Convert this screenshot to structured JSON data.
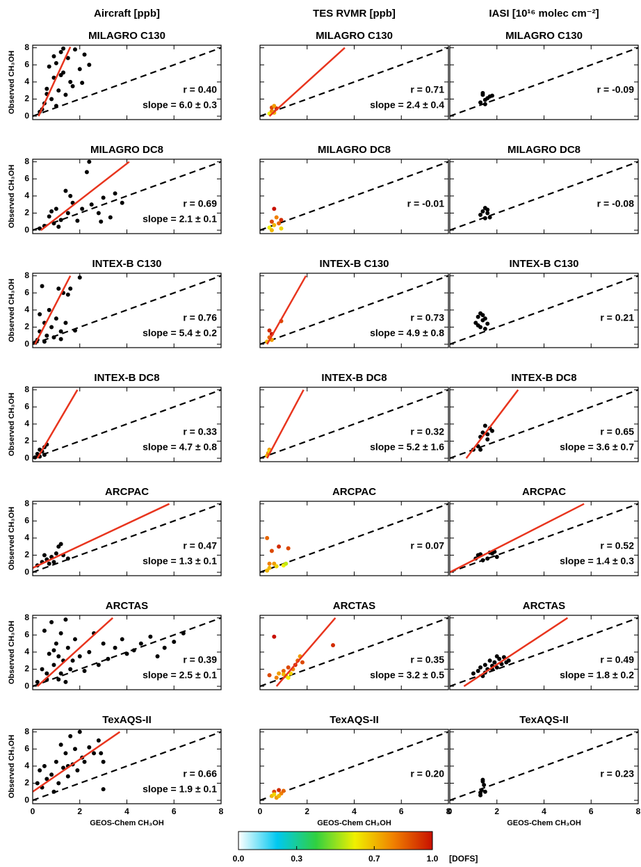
{
  "column_headers": [
    "Aircraft [ppb]",
    "TES RVMR [ppb]",
    "IASI [10¹⁶ molec cm⁻²]"
  ],
  "y_label": "Observed CH₃OH",
  "x_label": "GEOS-Chem CH₃OH",
  "fit_color": "#e8351e",
  "point_color": "#000000",
  "colorbar": {
    "colormap": [
      "#ffffff",
      "#00c8f0",
      "#30d040",
      "#f0f000",
      "#f08000",
      "#c81000"
    ],
    "lim": [
      0,
      1
    ],
    "ticks": [
      {
        "value": 0,
        "label": "0.0"
      },
      0.3,
      0.7,
      {
        "value": 1,
        "label": "1.0"
      }
    ],
    "label": "[DOFS]"
  },
  "chart_data": [
    {
      "type": "scatter",
      "title": "MILAGRO C130",
      "xlim": [
        0,
        8
      ],
      "ylim": [
        -0.4,
        8.3
      ],
      "xticks": [
        0,
        2,
        4,
        6,
        8
      ],
      "yticks": [
        0,
        2,
        4,
        6,
        8
      ],
      "x": [
        0.3,
        0.5,
        0.6,
        0.8,
        0.9,
        1.0,
        1.1,
        1.2,
        1.3,
        1.4,
        1.5,
        1.6,
        1.8,
        2.0,
        2.2,
        2.4,
        0.4,
        0.7,
        1.0,
        1.3,
        1.7,
        2.1,
        0.6,
        0.9,
        1.2
      ],
      "y": [
        0.5,
        1.5,
        3.2,
        2.0,
        4.5,
        6.2,
        3.0,
        7.5,
        5.1,
        2.5,
        6.8,
        4.0,
        7.8,
        5.5,
        7.2,
        6.0,
        0.8,
        5.8,
        1.2,
        7.9,
        3.5,
        3.9,
        2.6,
        7.0,
        4.8
      ],
      "fit_x": [
        0.25,
        1.6
      ],
      "fit_y": [
        0,
        8.1
      ],
      "r": "r = 0.40",
      "slope": "slope = 6.0 ± 0.3"
    },
    {
      "type": "scatter",
      "title": "MILAGRO C130",
      "xlim": [
        0,
        8
      ],
      "ylim": [
        -0.4,
        8.3
      ],
      "xticks": [
        0,
        2,
        4,
        6,
        8
      ],
      "yticks": [
        0,
        2,
        4,
        6,
        8
      ],
      "x": [
        0.4,
        0.5,
        0.5,
        0.6,
        0.7,
        0.6
      ],
      "y": [
        0.3,
        0.6,
        1.0,
        0.4,
        0.9,
        1.2
      ],
      "dofs": [
        0.6,
        0.8,
        0.9,
        0.7,
        0.95,
        0.75
      ],
      "fit_x": [
        0.4,
        3.6
      ],
      "fit_y": [
        0,
        8
      ],
      "r": "r = 0.71",
      "slope": "slope = 2.4 ± 0.4"
    },
    {
      "type": "scatter",
      "title": "MILAGRO C130",
      "xlim": [
        0,
        8
      ],
      "ylim": [
        -0.4,
        8.3
      ],
      "xticks": [
        0,
        2,
        4,
        6,
        8
      ],
      "yticks": [
        0,
        2,
        4,
        6,
        8
      ],
      "x": [
        1.3,
        1.4,
        1.4,
        1.5,
        1.6,
        1.7,
        1.8,
        1.5
      ],
      "y": [
        1.6,
        2.5,
        2.7,
        1.9,
        2.1,
        2.3,
        2.4,
        1.4
      ],
      "r": "r = -0.09"
    },
    {
      "type": "scatter",
      "title": "MILAGRO DC8",
      "xlim": [
        0,
        8
      ],
      "ylim": [
        -0.4,
        8.3
      ],
      "xticks": [
        0,
        2,
        4,
        6,
        8
      ],
      "yticks": [
        0,
        2,
        4,
        6,
        8
      ],
      "x": [
        0.3,
        0.5,
        0.7,
        0.9,
        1.0,
        1.2,
        1.4,
        1.5,
        1.7,
        1.9,
        2.1,
        2.3,
        2.5,
        2.8,
        3.0,
        3.3,
        3.5,
        3.8,
        1.1,
        1.6,
        2.4,
        0.8,
        2.9
      ],
      "y": [
        0.2,
        0.5,
        1.6,
        0.8,
        2.5,
        1.2,
        4.6,
        2.0,
        3.2,
        1.1,
        2.5,
        6.8,
        3.0,
        2.0,
        3.8,
        1.5,
        4.3,
        3.2,
        0.4,
        4.0,
        8.0,
        2.2,
        1.0
      ],
      "fit_x": [
        0.35,
        4.1
      ],
      "fit_y": [
        0,
        8
      ],
      "r": "r = 0.69",
      "slope": "slope = 2.1 ± 0.1"
    },
    {
      "type": "scatter",
      "title": "MILAGRO DC8",
      "xlim": [
        0,
        8
      ],
      "ylim": [
        -0.4,
        8.3
      ],
      "xticks": [
        0,
        2,
        4,
        6,
        8
      ],
      "yticks": [
        0,
        2,
        4,
        6,
        8
      ],
      "x": [
        0.4,
        0.5,
        0.6,
        0.6,
        0.7,
        0.8,
        0.9,
        0.9,
        0.5
      ],
      "y": [
        0.3,
        1.0,
        2.5,
        0.6,
        1.5,
        0.8,
        0.2,
        1.2,
        0.0
      ],
      "dofs": [
        0.6,
        0.9,
        1.0,
        0.7,
        0.8,
        0.85,
        0.65,
        0.95,
        0.7
      ],
      "r": "r = -0.01"
    },
    {
      "type": "scatter",
      "title": "MILAGRO DC8",
      "xlim": [
        0,
        8
      ],
      "ylim": [
        -0.4,
        8.3
      ],
      "xticks": [
        0,
        2,
        4,
        6,
        8
      ],
      "yticks": [
        0,
        2,
        4,
        6,
        8
      ],
      "x": [
        1.3,
        1.4,
        1.5,
        1.5,
        1.6,
        1.7,
        1.6
      ],
      "y": [
        1.8,
        2.2,
        1.4,
        2.6,
        2.0,
        1.5,
        2.4
      ],
      "r": "r = -0.08"
    },
    {
      "type": "scatter",
      "title": "INTEX-B C130",
      "xlim": [
        0,
        8
      ],
      "ylim": [
        -0.4,
        8.3
      ],
      "xticks": [
        0,
        2,
        4,
        6,
        8
      ],
      "yticks": [
        0,
        2,
        4,
        6,
        8
      ],
      "x": [
        0.1,
        0.2,
        0.3,
        0.4,
        0.5,
        0.6,
        0.7,
        0.8,
        0.9,
        1.0,
        1.1,
        1.2,
        1.3,
        1.4,
        1.5,
        1.6,
        1.8,
        2.0,
        0.3,
        0.5,
        1.2
      ],
      "y": [
        0.2,
        0.5,
        1.5,
        6.8,
        2.5,
        1.0,
        4.0,
        2.0,
        0.8,
        3.0,
        6.5,
        1.5,
        6.0,
        2.5,
        5.8,
        6.5,
        1.6,
        7.8,
        3.5,
        0.3,
        0.6
      ],
      "fit_x": [
        0.1,
        1.6
      ],
      "fit_y": [
        0,
        8
      ],
      "r": "r = 0.76",
      "slope": "slope = 5.4 ± 0.2"
    },
    {
      "type": "scatter",
      "title": "INTEX-B C130",
      "xlim": [
        0,
        8
      ],
      "ylim": [
        -0.4,
        8.3
      ],
      "xticks": [
        0,
        2,
        4,
        6,
        8
      ],
      "yticks": [
        0,
        2,
        4,
        6,
        8
      ],
      "x": [
        0.3,
        0.4,
        0.4,
        0.5,
        0.5,
        0.9
      ],
      "y": [
        0.3,
        0.8,
        1.6,
        0.5,
        1.2,
        2.7
      ],
      "dofs": [
        0.7,
        0.85,
        0.95,
        0.75,
        1.0,
        0.9
      ],
      "fit_x": [
        0.3,
        1.95
      ],
      "fit_y": [
        0,
        8
      ],
      "r": "r = 0.73",
      "slope": "slope = 4.9 ± 0.8"
    },
    {
      "type": "scatter",
      "title": "INTEX-B C130",
      "xlim": [
        0,
        8
      ],
      "ylim": [
        -0.4,
        8.3
      ],
      "xticks": [
        0,
        2,
        4,
        6,
        8
      ],
      "yticks": [
        0,
        2,
        4,
        6,
        8
      ],
      "x": [
        1.1,
        1.2,
        1.3,
        1.3,
        1.4,
        1.5,
        1.5,
        1.6,
        1.2,
        1.4
      ],
      "y": [
        2.5,
        3.2,
        2.0,
        3.6,
        2.8,
        3.0,
        1.8,
        2.4,
        2.2,
        3.4
      ],
      "r": "r = 0.21"
    },
    {
      "type": "scatter",
      "title": "INTEX-B DC8",
      "xlim": [
        0,
        8
      ],
      "ylim": [
        -0.4,
        8.3
      ],
      "xticks": [
        0,
        2,
        4,
        6,
        8
      ],
      "yticks": [
        0,
        2,
        4,
        6,
        8
      ],
      "x": [
        0.1,
        0.2,
        0.3,
        0.3,
        0.4,
        0.5,
        0.6,
        0.5
      ],
      "y": [
        0.1,
        0.5,
        1.0,
        0.2,
        0.8,
        1.3,
        1.6,
        0.4
      ],
      "fit_x": [
        0.2,
        1.9
      ],
      "fit_y": [
        0,
        8
      ],
      "r": "r = 0.33",
      "slope": "slope = 4.7 ± 0.8"
    },
    {
      "type": "scatter",
      "title": "INTEX-B DC8",
      "xlim": [
        0,
        8
      ],
      "ylim": [
        -0.4,
        8.3
      ],
      "xticks": [
        0,
        2,
        4,
        6,
        8
      ],
      "yticks": [
        0,
        2,
        4,
        6,
        8
      ],
      "x": [
        0.3,
        0.35,
        0.4,
        0.4
      ],
      "y": [
        0.3,
        0.6,
        1.0,
        0.8
      ],
      "dofs": [
        0.7,
        0.8,
        0.75,
        0.65
      ],
      "fit_x": [
        0.3,
        1.85
      ],
      "fit_y": [
        0,
        8
      ],
      "r": "r = 0.32",
      "slope": "slope = 5.2 ± 1.6"
    },
    {
      "type": "scatter",
      "title": "INTEX-B DC8",
      "xlim": [
        0,
        8
      ],
      "ylim": [
        -0.4,
        8.3
      ],
      "xticks": [
        0,
        2,
        4,
        6,
        8
      ],
      "yticks": [
        0,
        2,
        4,
        6,
        8
      ],
      "x": [
        1.0,
        1.2,
        1.3,
        1.4,
        1.5,
        1.6,
        1.7,
        1.8,
        1.3,
        1.6
      ],
      "y": [
        1.0,
        1.4,
        2.5,
        3.0,
        3.8,
        2.2,
        3.5,
        3.2,
        1.0,
        2.8
      ],
      "fit_x": [
        0.7,
        2.9
      ],
      "fit_y": [
        0,
        8
      ],
      "r": "r = 0.65",
      "slope": "slope = 3.6 ± 0.7"
    },
    {
      "type": "scatter",
      "title": "ARCPAC",
      "xlim": [
        0,
        8
      ],
      "ylim": [
        -0.4,
        8.3
      ],
      "xticks": [
        0,
        2,
        4,
        6,
        8
      ],
      "yticks": [
        0,
        2,
        4,
        6,
        8
      ],
      "x": [
        0.2,
        0.4,
        0.5,
        0.6,
        0.8,
        1.0,
        1.1,
        1.2,
        1.3,
        1.5,
        0.9,
        0.7
      ],
      "y": [
        0.8,
        1.2,
        2.0,
        1.5,
        1.8,
        2.2,
        3.0,
        3.3,
        2.0,
        1.6,
        1.2,
        1.0
      ],
      "fit_x": [
        0,
        5.8
      ],
      "fit_y": [
        0.5,
        8
      ],
      "r": "r = 0.47",
      "slope": "slope = 1.3 ± 0.1"
    },
    {
      "type": "scatter",
      "title": "ARCPAC",
      "xlim": [
        0,
        8
      ],
      "ylim": [
        -0.4,
        8.3
      ],
      "xticks": [
        0,
        2,
        4,
        6,
        8
      ],
      "yticks": [
        0,
        2,
        4,
        6,
        8
      ],
      "x": [
        0.3,
        0.4,
        0.4,
        0.5,
        0.6,
        0.8,
        1.0,
        1.2,
        0.3,
        0.7,
        1.1
      ],
      "y": [
        4.0,
        1.0,
        0.5,
        2.5,
        1.0,
        3.0,
        0.8,
        2.8,
        0.2,
        0.7,
        1.0
      ],
      "dofs": [
        0.85,
        0.8,
        0.7,
        0.9,
        0.75,
        0.95,
        0.6,
        0.9,
        0.7,
        0.65,
        0.55
      ],
      "r": "r = 0.07"
    },
    {
      "type": "scatter",
      "title": "ARCPAC",
      "xlim": [
        0,
        8
      ],
      "ylim": [
        -0.4,
        8.3
      ],
      "xticks": [
        0,
        2,
        4,
        6,
        8
      ],
      "yticks": [
        0,
        2,
        4,
        6,
        8
      ],
      "x": [
        1.1,
        1.3,
        1.4,
        1.6,
        1.8,
        1.9,
        2.0,
        1.2,
        1.7
      ],
      "y": [
        1.6,
        2.1,
        1.4,
        1.6,
        2.2,
        2.4,
        1.8,
        2.0,
        2.3
      ],
      "fit_x": [
        0,
        5.7
      ],
      "fit_y": [
        0,
        8
      ],
      "r": "r = 0.52",
      "slope": "slope = 1.4 ± 0.3"
    },
    {
      "type": "scatter",
      "title": "ARCTAS",
      "xlim": [
        0,
        8
      ],
      "ylim": [
        -0.4,
        8.3
      ],
      "xticks": [
        0,
        2,
        4,
        6,
        8
      ],
      "yticks": [
        0,
        2,
        4,
        6,
        8
      ],
      "x": [
        0.2,
        0.4,
        0.5,
        0.6,
        0.7,
        0.8,
        0.9,
        1.0,
        1.1,
        1.2,
        1.3,
        1.4,
        1.5,
        1.6,
        1.8,
        2.0,
        2.2,
        2.4,
        2.6,
        2.8,
        3.0,
        3.2,
        3.5,
        3.8,
        4.0,
        4.3,
        4.6,
        5.0,
        5.3,
        5.6,
        6.0,
        6.4,
        0.9,
        1.2,
        1.4,
        1.7,
        0.6,
        1.1
      ],
      "y": [
        0.5,
        2.0,
        6.5,
        1.5,
        3.8,
        7.5,
        2.5,
        5.0,
        0.8,
        6.2,
        3.0,
        7.8,
        4.5,
        2.0,
        5.5,
        3.5,
        1.8,
        4.0,
        6.2,
        2.5,
        5.0,
        3.2,
        4.5,
        5.5,
        3.8,
        4.2,
        5.0,
        5.8,
        3.5,
        4.5,
        5.2,
        6.2,
        4.2,
        1.5,
        0.5,
        3.0,
        0.8,
        3.5
      ],
      "fit_x": [
        0.2,
        3.4
      ],
      "fit_y": [
        0,
        8
      ],
      "r": "r = 0.39",
      "slope": "slope = 2.5 ± 0.1"
    },
    {
      "type": "scatter",
      "title": "ARCTAS",
      "xlim": [
        0,
        8
      ],
      "ylim": [
        -0.4,
        8.3
      ],
      "xticks": [
        0,
        2,
        4,
        6,
        8
      ],
      "yticks": [
        0,
        2,
        4,
        6,
        8
      ],
      "x": [
        0.4,
        0.6,
        0.7,
        0.8,
        1.0,
        1.1,
        1.2,
        1.3,
        1.4,
        1.5,
        1.6,
        1.7,
        1.8,
        3.1,
        1.0,
        1.2
      ],
      "y": [
        1.3,
        5.8,
        1.0,
        1.5,
        1.8,
        1.2,
        2.2,
        1.5,
        2.0,
        2.5,
        3.0,
        3.5,
        2.8,
        4.8,
        1.4,
        1.0
      ],
      "dofs": [
        0.9,
        1.0,
        0.8,
        0.75,
        0.85,
        0.7,
        0.9,
        0.65,
        0.8,
        0.95,
        0.85,
        0.75,
        0.9,
        0.95,
        0.7,
        0.6
      ],
      "fit_x": [
        0.7,
        3.2
      ],
      "fit_y": [
        0,
        8
      ],
      "r": "r = 0.35",
      "slope": "slope = 3.2 ± 0.5"
    },
    {
      "type": "scatter",
      "title": "ARCTAS",
      "xlim": [
        0,
        8
      ],
      "ylim": [
        -0.4,
        8.3
      ],
      "xticks": [
        0,
        2,
        4,
        6,
        8
      ],
      "yticks": [
        0,
        2,
        4,
        6,
        8
      ],
      "x": [
        1.0,
        1.2,
        1.3,
        1.4,
        1.5,
        1.6,
        1.7,
        1.8,
        1.9,
        2.0,
        2.1,
        2.2,
        2.3,
        2.4,
        2.5,
        1.5,
        1.8,
        2.0
      ],
      "y": [
        1.5,
        1.8,
        2.2,
        1.2,
        2.5,
        2.0,
        3.0,
        2.4,
        2.8,
        2.2,
        3.2,
        2.6,
        3.4,
        2.8,
        3.0,
        1.6,
        2.0,
        3.5
      ],
      "fit_x": [
        0.6,
        5.0
      ],
      "fit_y": [
        0,
        8
      ],
      "r": "r = 0.49",
      "slope": "slope = 1.8 ± 0.2"
    },
    {
      "type": "scatter",
      "title": "TexAQS-II",
      "xlim": [
        0,
        8
      ],
      "ylim": [
        -0.4,
        8.3
      ],
      "xticks": [
        0,
        2,
        4,
        6,
        8
      ],
      "yticks": [
        0,
        2,
        4,
        6,
        8
      ],
      "x": [
        0.2,
        0.3,
        0.4,
        0.5,
        0.6,
        0.8,
        1.0,
        1.1,
        1.2,
        1.3,
        1.4,
        1.5,
        1.6,
        1.7,
        1.8,
        1.9,
        2.0,
        2.1,
        2.2,
        2.4,
        2.6,
        2.8,
        3.0,
        3.0,
        0.9,
        1.5,
        2.9
      ],
      "y": [
        2.0,
        3.5,
        1.5,
        4.0,
        2.5,
        3.0,
        4.5,
        2.0,
        6.5,
        3.8,
        5.5,
        2.8,
        7.5,
        4.2,
        6.0,
        3.5,
        8.0,
        5.0,
        4.5,
        6.2,
        5.5,
        7.0,
        4.5,
        1.3,
        1.0,
        4.0,
        5.5
      ],
      "fit_x": [
        0,
        3.7
      ],
      "fit_y": [
        1,
        8
      ],
      "r": "r = 0.66",
      "slope": "slope = 1.9 ± 0.1"
    },
    {
      "type": "scatter",
      "title": "TexAQS-II",
      "xlim": [
        0,
        8
      ],
      "ylim": [
        -0.4,
        8.3
      ],
      "xticks": [
        0,
        2,
        4,
        6,
        8
      ],
      "yticks": [
        0,
        2,
        4,
        6,
        8
      ],
      "x": [
        0.5,
        0.6,
        0.7,
        0.8,
        0.9,
        1.0,
        0.6,
        0.8
      ],
      "y": [
        0.5,
        1.0,
        0.3,
        1.2,
        0.8,
        1.1,
        0.7,
        0.5
      ],
      "dofs": [
        0.7,
        0.9,
        0.75,
        0.95,
        0.8,
        0.85,
        0.65,
        0.7
      ],
      "r": "r = 0.20"
    },
    {
      "type": "scatter",
      "title": "TexAQS-II",
      "xlim": [
        0,
        8
      ],
      "ylim": [
        -0.4,
        8.3
      ],
      "xticks": [
        0,
        2,
        4,
        6,
        8
      ],
      "yticks": [
        0,
        2,
        4,
        6,
        8
      ],
      "x": [
        1.3,
        1.35,
        1.4,
        1.45,
        1.5,
        1.4,
        1.3
      ],
      "y": [
        0.6,
        1.2,
        2.4,
        1.8,
        1.0,
        2.2,
        0.9
      ],
      "r": "r = 0.23"
    }
  ]
}
